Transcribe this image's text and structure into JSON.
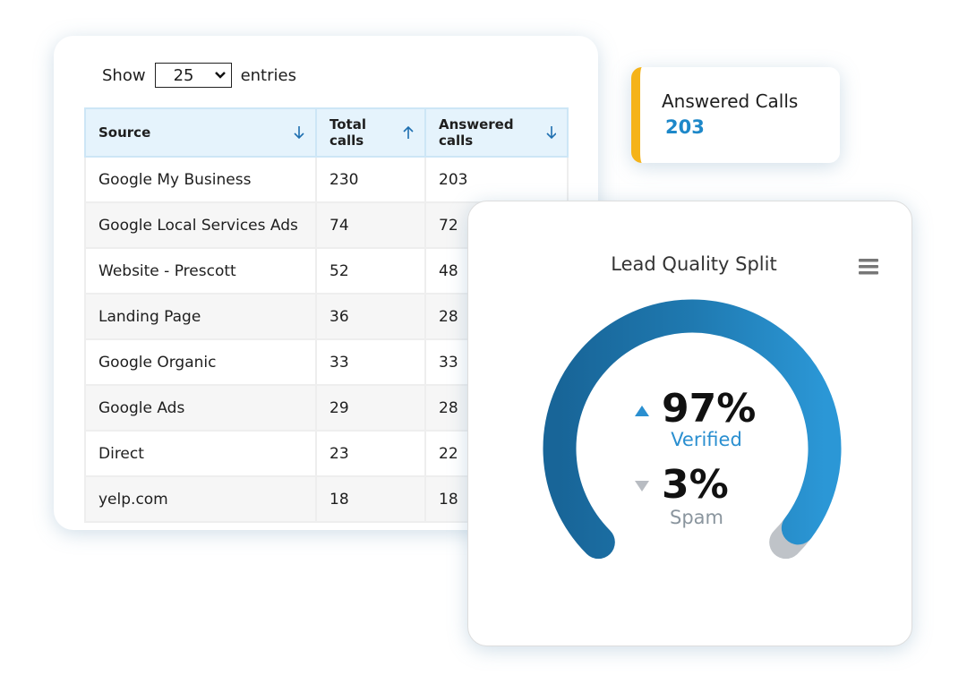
{
  "table_card": {
    "show_label": "Show",
    "page_size": "25",
    "entries_label": "entries",
    "columns": [
      "Source",
      "Total calls",
      "Answered calls"
    ],
    "rows": [
      [
        "Google My Business",
        230,
        203
      ],
      [
        "Google Local Services Ads",
        74,
        72
      ],
      [
        "Website - Prescott",
        52,
        48
      ],
      [
        "Landing Page",
        36,
        28
      ],
      [
        "Google Organic",
        33,
        33
      ],
      [
        "Google Ads",
        29,
        28
      ],
      [
        "Direct",
        23,
        22
      ],
      [
        "yelp.com",
        18,
        18
      ]
    ]
  },
  "stat_card": {
    "label": "Answered Calls",
    "value": 203
  },
  "gauge": {
    "title": "Lead Quality Split",
    "verified": {
      "value": 97,
      "label": "97%",
      "name": "Verified"
    },
    "spam": {
      "value": 3,
      "label": "3%",
      "name": "Spam"
    }
  }
}
